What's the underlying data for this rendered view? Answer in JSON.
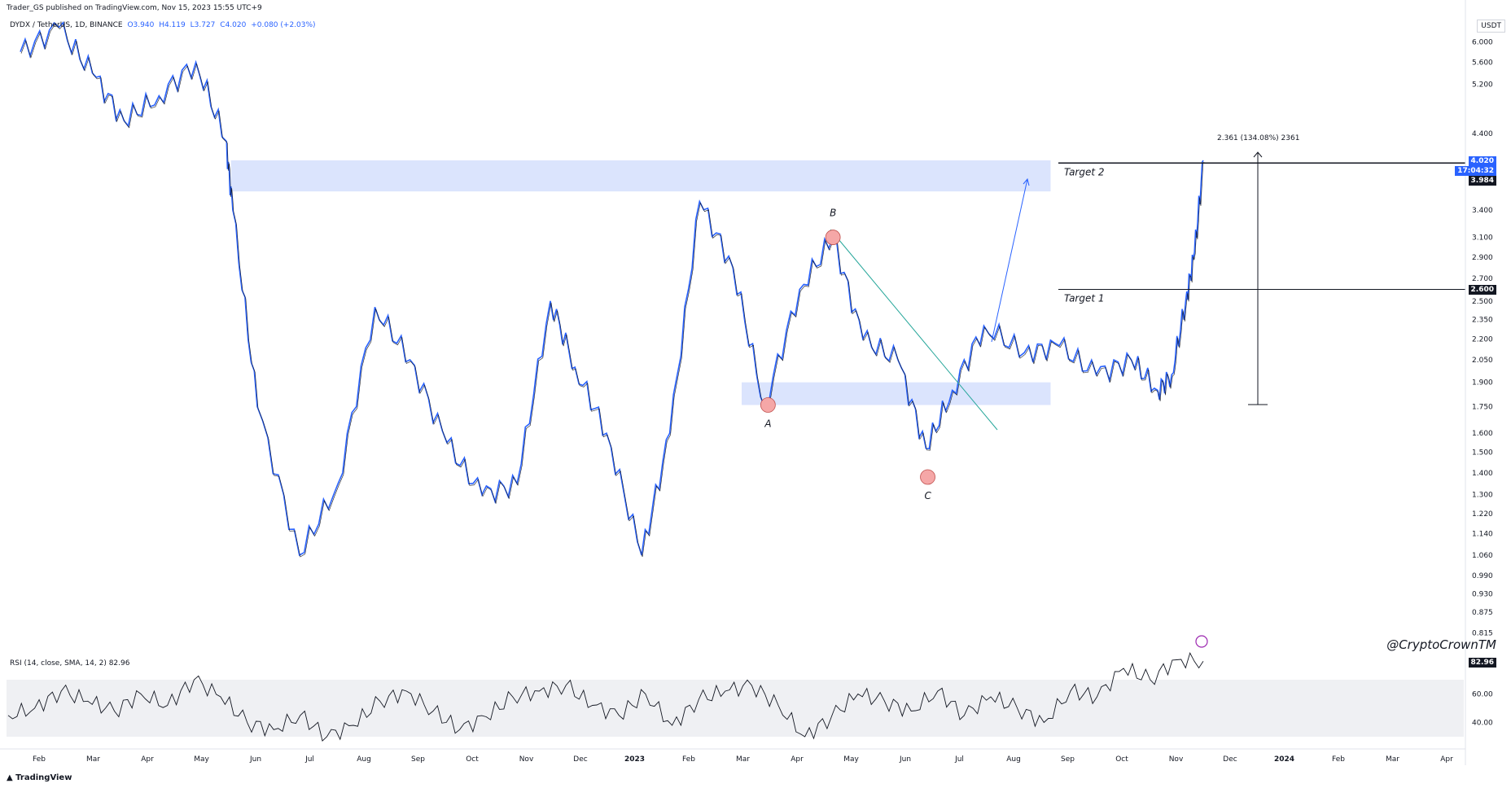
{
  "header": {
    "published_line": "Trader_GS published on TradingView.com, Nov 15, 2023 15:55 UTC+9",
    "symbol": "DYDX / TetherUS, 1D, BINANCE",
    "open": "O3.940",
    "high": "H4.119",
    "low": "L3.727",
    "close": "C4.020",
    "change": "+0.080 (+2.03%)"
  },
  "currency": "USDT",
  "rsi_legend": "RSI (14, close, SMA, 14, 2)  82.96",
  "watermark": "@CryptoCrownTM",
  "footer": "TradingView",
  "colors": {
    "candle": "#2962ff",
    "candle_dark": "#131722",
    "zone": "#dbe4fd",
    "rsi_band": "#eff0f3",
    "marker": "#f5a7a7",
    "green_line": "#26a69a"
  },
  "annotations": {
    "target1": "Target 1",
    "target2": "Target 2",
    "pointA": "A",
    "pointB": "B",
    "pointC": "C",
    "fib": "2.361 (134.08%) 2361"
  },
  "price_tags": {
    "last": "4.020",
    "countdown": "17:04:32",
    "high_line": "3.984",
    "target1_line": "2.600",
    "rsi_last": "82.96"
  },
  "chart_data": [
    {
      "type": "line",
      "title": "DYDX / TetherUS, 1D, BINANCE",
      "y_scale": "log",
      "y_ticks": [
        "6.000",
        "5.600",
        "5.200",
        "4.400",
        "3.400",
        "3.100",
        "2.900",
        "2.700",
        "2.500",
        "2.350",
        "2.200",
        "2.050",
        "1.900",
        "1.750",
        "1.600",
        "1.500",
        "1.400",
        "1.300",
        "1.220",
        "1.140",
        "1.060",
        "0.990",
        "0.930",
        "0.875",
        "0.815"
      ],
      "x_ticks": [
        "Feb",
        "Mar",
        "Apr",
        "May",
        "Jun",
        "Jul",
        "Aug",
        "Sep",
        "Oct",
        "Nov",
        "Dec",
        "2023",
        "Feb",
        "Mar",
        "Apr",
        "May",
        "Jun",
        "Jul",
        "Aug",
        "Sep",
        "Oct",
        "Nov",
        "Dec",
        "2024",
        "Feb",
        "Mar",
        "Apr"
      ],
      "x": [
        "2022-01-10",
        "2022-02-01",
        "2022-02-20",
        "2022-03-10",
        "2022-03-30",
        "2022-04-20",
        "2022-05-07",
        "2022-05-11",
        "2022-05-25",
        "2022-06-18",
        "2022-07-10",
        "2022-07-31",
        "2022-08-20",
        "2022-09-10",
        "2022-09-30",
        "2022-10-20",
        "2022-11-08",
        "2022-11-22",
        "2022-12-10",
        "2022-12-30",
        "2023-01-15",
        "2023-02-01",
        "2023-02-20",
        "2023-03-10",
        "2023-03-30",
        "2023-04-18",
        "2023-05-05",
        "2023-05-25",
        "2023-06-10",
        "2023-06-25",
        "2023-07-13",
        "2023-08-05",
        "2023-08-25",
        "2023-09-15",
        "2023-10-05",
        "2023-10-20",
        "2023-10-28",
        "2023-11-05",
        "2023-11-10",
        "2023-11-15"
      ],
      "series": [
        {
          "values": [
            5.8,
            6.3,
            5.4,
            4.6,
            5.0,
            5.6,
            4.3,
            3.4,
            1.75,
            1.06,
            1.35,
            2.45,
            2.05,
            1.55,
            1.3,
            1.35,
            2.5,
            2.0,
            1.6,
            1.06,
            1.6,
            3.5,
            2.8,
            1.75,
            2.6,
            3.1,
            2.2,
            2.05,
            1.52,
            1.85,
            2.3,
            2.1,
            2.15,
            1.95,
            2.05,
            1.85,
            1.95,
            2.5,
            2.95,
            4.02
          ]
        }
      ],
      "zones": [
        {
          "from": 3.62,
          "to": 4.02,
          "x_from": "2022-05-10",
          "x_to": "2023-08-20"
        },
        {
          "from": 1.76,
          "to": 1.9,
          "x_from": "2023-02-25",
          "x_to": "2023-08-20"
        }
      ],
      "lines": [
        {
          "label": "Target 2",
          "value": 3.984
        },
        {
          "label": "Target 1",
          "value": 2.6
        }
      ],
      "points": [
        {
          "label": "A",
          "x": "2023-03-12",
          "y": 1.76
        },
        {
          "label": "B",
          "x": "2023-04-18",
          "y": 3.1
        },
        {
          "label": "C",
          "x": "2023-06-11",
          "y": 1.38
        }
      ]
    },
    {
      "type": "line",
      "title": "RSI (14, close, SMA, 14, 2)",
      "y_ticks": [
        "60.00",
        "40.00"
      ],
      "band": [
        30,
        70
      ],
      "series": [
        {
          "values": [
            45,
            50,
            62,
            55,
            48,
            60,
            52,
            70,
            58,
            40,
            35,
            45,
            30,
            38,
            55,
            62,
            48,
            35,
            44,
            58,
            62,
            66,
            52,
            45,
            60,
            38,
            56,
            62,
            66,
            52,
            30,
            44,
            60,
            55,
            48,
            62,
            45,
            58,
            50,
            40,
            62,
            58,
            78,
            70,
            84,
            82.96
          ]
        }
      ]
    }
  ]
}
